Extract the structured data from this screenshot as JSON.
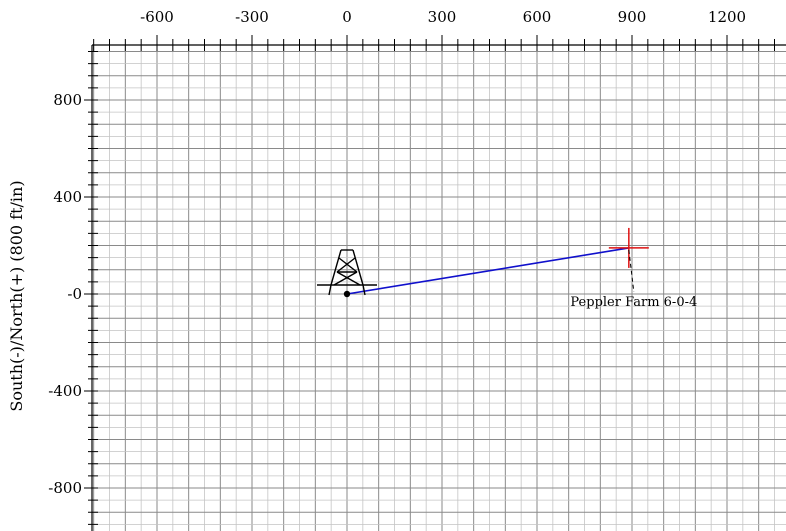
{
  "chart_data": {
    "type": "scatter",
    "subtype": "directional-survey-plan-view",
    "xlabel": "",
    "ylabel": "South(-)/North(+) (800 ft/in)",
    "xlim": [
      -800,
      1350
    ],
    "ylim": [
      -960,
      1040
    ],
    "x_ticks": [
      -600,
      -300,
      0,
      300,
      600,
      900,
      1200
    ],
    "x_tick_labels": [
      "-600",
      "-300",
      "0",
      "300",
      "600",
      "900",
      "1200"
    ],
    "y_ticks": [
      800,
      400,
      0,
      -400,
      -800
    ],
    "y_tick_labels": [
      "800",
      "400",
      "-0",
      "-400",
      "-800"
    ],
    "x_axis_position": "top",
    "grid": true,
    "major_grid_step": 100,
    "minor_grid_step": 50,
    "wellhead": {
      "x": 0,
      "y": 0,
      "icon": "rig-icon"
    },
    "path": {
      "color": "#1010cc",
      "points": [
        {
          "x": 0,
          "y": 0
        },
        {
          "x": 890,
          "y": 190
        }
      ]
    },
    "target": {
      "x": 890,
      "y": 190,
      "color": "#dd1111",
      "label": "Peppler Farm 6-0-4"
    }
  }
}
